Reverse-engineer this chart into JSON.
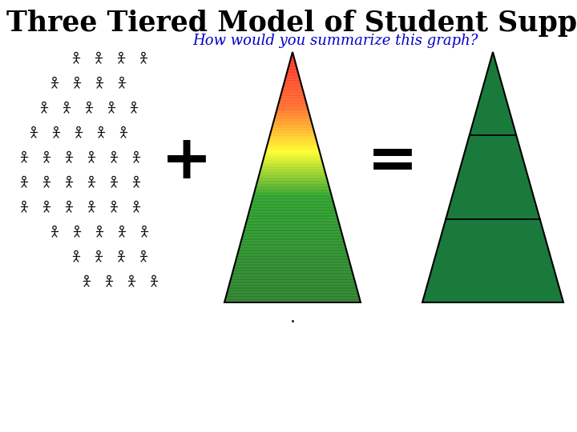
{
  "title": "Three Tiered Model of Student Supports",
  "subtitle": "How would you summarize this graph?",
  "title_color": "#000000",
  "subtitle_color": "#0000CC",
  "bg_color": "#FFFFFF",
  "colors_stops": [
    [
      0.0,
      [
        0,
        100,
        0
      ]
    ],
    [
      0.42,
      [
        0,
        140,
        0
      ]
    ],
    [
      0.6,
      [
        255,
        255,
        0
      ]
    ],
    [
      0.78,
      [
        255,
        80,
        0
      ]
    ],
    [
      1.0,
      [
        255,
        0,
        0
      ]
    ]
  ],
  "triangle2_color": "#1a7a3c",
  "figures_color": "#111111"
}
